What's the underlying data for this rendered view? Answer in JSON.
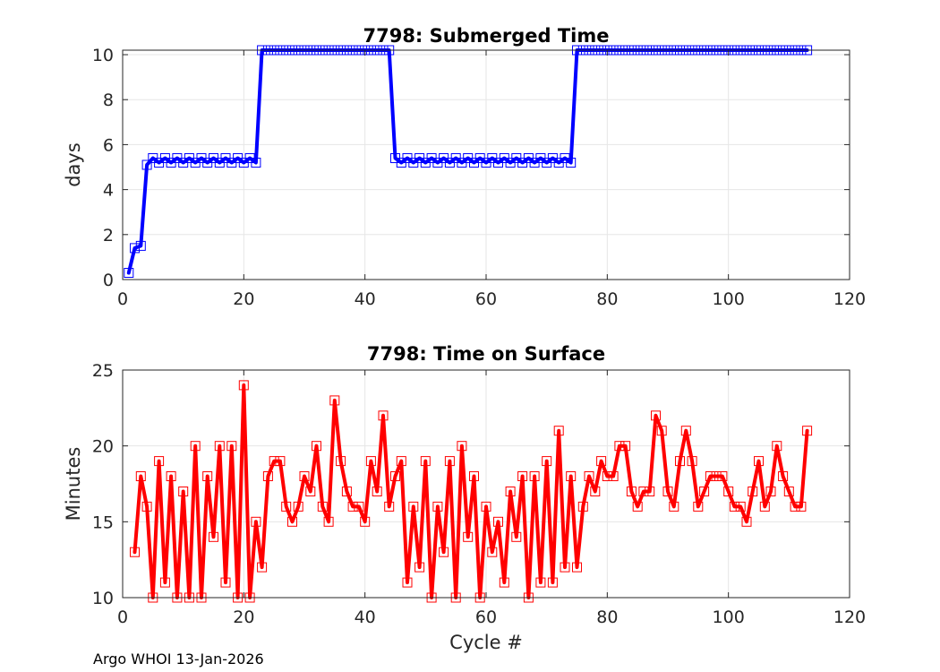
{
  "footer": "Argo WHOI 13-Jan-2026",
  "chart_data": [
    {
      "type": "line",
      "title": "7798: Submerged Time",
      "xlabel": "",
      "ylabel": "days",
      "xlim": [
        0,
        120
      ],
      "ylim": [
        0,
        10.2
      ],
      "xticks": [
        0,
        20,
        40,
        60,
        80,
        100,
        120
      ],
      "yticks": [
        0,
        2,
        4,
        6,
        8,
        10
      ],
      "grid": true,
      "color": "#0000ff",
      "series": [
        {
          "name": "Submerged Time",
          "x": [
            1,
            2,
            3,
            4,
            5,
            6,
            7,
            8,
            9,
            10,
            11,
            12,
            13,
            14,
            15,
            16,
            17,
            18,
            19,
            20,
            21,
            22,
            23,
            24,
            25,
            26,
            27,
            28,
            29,
            30,
            31,
            32,
            33,
            34,
            35,
            36,
            37,
            38,
            39,
            40,
            41,
            42,
            43,
            44,
            45,
            46,
            47,
            48,
            49,
            50,
            51,
            52,
            53,
            54,
            55,
            56,
            57,
            58,
            59,
            60,
            61,
            62,
            63,
            64,
            65,
            66,
            67,
            68,
            69,
            70,
            71,
            72,
            73,
            74,
            75,
            76,
            77,
            78,
            79,
            80,
            81,
            82,
            83,
            84,
            85,
            86,
            87,
            88,
            89,
            90,
            91,
            92,
            93,
            94,
            95,
            96,
            97,
            98,
            99,
            100,
            101,
            102,
            103,
            104,
            105,
            106,
            107,
            108,
            109,
            110,
            111,
            112,
            113
          ],
          "values": [
            0.3,
            1.4,
            1.5,
            5.1,
            5.4,
            5.2,
            5.4,
            5.2,
            5.4,
            5.2,
            5.4,
            5.2,
            5.4,
            5.2,
            5.4,
            5.2,
            5.4,
            5.2,
            5.4,
            5.2,
            5.4,
            5.2,
            10.2,
            10.2,
            10.2,
            10.2,
            10.2,
            10.2,
            10.2,
            10.2,
            10.2,
            10.2,
            10.2,
            10.2,
            10.2,
            10.2,
            10.2,
            10.2,
            10.2,
            10.2,
            10.2,
            10.2,
            10.2,
            10.2,
            5.4,
            5.2,
            5.4,
            5.2,
            5.4,
            5.2,
            5.4,
            5.2,
            5.4,
            5.2,
            5.4,
            5.2,
            5.4,
            5.2,
            5.4,
            5.2,
            5.4,
            5.2,
            5.4,
            5.2,
            5.4,
            5.2,
            5.4,
            5.2,
            5.4,
            5.2,
            5.4,
            5.2,
            5.4,
            5.2,
            10.2,
            10.2,
            10.2,
            10.2,
            10.2,
            10.2,
            10.2,
            10.2,
            10.2,
            10.2,
            10.2,
            10.2,
            10.2,
            10.2,
            10.2,
            10.2,
            10.2,
            10.2,
            10.2,
            10.2,
            10.2,
            10.2,
            10.2,
            10.2,
            10.2,
            10.2,
            10.2,
            10.2,
            10.2,
            10.2,
            10.2,
            10.2,
            10.2,
            10.2,
            10.2,
            10.2,
            10.2,
            10.2,
            10.2
          ]
        }
      ]
    },
    {
      "type": "line",
      "title": "7798: Time on Surface",
      "xlabel": "Cycle #",
      "ylabel": "Minutes",
      "xlim": [
        0,
        120
      ],
      "ylim": [
        10,
        25
      ],
      "xticks": [
        0,
        20,
        40,
        60,
        80,
        100,
        120
      ],
      "yticks": [
        10,
        15,
        20,
        25
      ],
      "grid": true,
      "color": "#ff0000",
      "series": [
        {
          "name": "Time on Surface",
          "x": [
            2,
            3,
            4,
            5,
            6,
            7,
            8,
            9,
            10,
            11,
            12,
            13,
            14,
            15,
            16,
            17,
            18,
            19,
            20,
            21,
            22,
            23,
            24,
            25,
            26,
            27,
            28,
            29,
            30,
            31,
            32,
            33,
            34,
            35,
            36,
            37,
            38,
            39,
            40,
            41,
            42,
            43,
            44,
            45,
            46,
            47,
            48,
            49,
            50,
            51,
            52,
            53,
            54,
            55,
            56,
            57,
            58,
            59,
            60,
            61,
            62,
            63,
            64,
            65,
            66,
            67,
            68,
            69,
            70,
            71,
            72,
            73,
            74,
            75,
            76,
            77,
            78,
            79,
            80,
            81,
            82,
            83,
            84,
            85,
            86,
            87,
            88,
            89,
            90,
            91,
            92,
            93,
            94,
            95,
            96,
            97,
            98,
            99,
            100,
            101,
            102,
            103,
            104,
            105,
            106,
            107,
            108,
            109,
            110,
            111,
            112,
            113
          ],
          "values": [
            13,
            18,
            16,
            10,
            19,
            11,
            18,
            10,
            17,
            10,
            20,
            10,
            18,
            14,
            20,
            11,
            20,
            10,
            24,
            10,
            15,
            12,
            18,
            19,
            19,
            16,
            15,
            16,
            18,
            17,
            20,
            16,
            15,
            23,
            19,
            17,
            16,
            16,
            15,
            19,
            17,
            22,
            16,
            18,
            19,
            11,
            16,
            12,
            19,
            10,
            16,
            13,
            19,
            10,
            20,
            14,
            18,
            10,
            16,
            13,
            15,
            11,
            17,
            14,
            18,
            10,
            18,
            11,
            19,
            11,
            21,
            12,
            18,
            12,
            16,
            18,
            17,
            19,
            18,
            18,
            20,
            20,
            17,
            16,
            17,
            17,
            22,
            21,
            17,
            16,
            19,
            21,
            19,
            16,
            17,
            18,
            18,
            18,
            17,
            16,
            16,
            15,
            17,
            19,
            16,
            17,
            20,
            18,
            17,
            16,
            16,
            21
          ]
        }
      ]
    }
  ]
}
